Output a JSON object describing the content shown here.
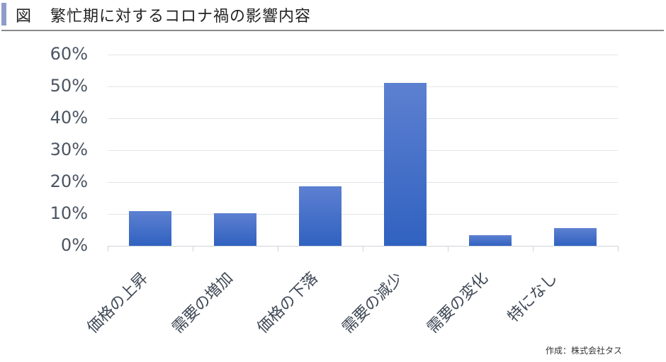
{
  "header": {
    "figure_label": "図",
    "title": "繁忙期に対するコロナ禍の影響内容",
    "accent_color": "#8E9BCB"
  },
  "chart_data": {
    "type": "bar",
    "title": "繁忙期に対するコロナ禍の影響内容",
    "categories": [
      "価格の上昇",
      "需要の増加",
      "価格の下落",
      "需要の減少",
      "需要の変化",
      "特になし"
    ],
    "values": [
      10.9,
      10.2,
      18.7,
      51.1,
      3.3,
      5.6
    ],
    "value_unit": "%",
    "xlabel": "",
    "ylabel": "",
    "ylim": [
      0,
      60
    ],
    "yticks": [
      "0%",
      "10%",
      "20%",
      "30%",
      "40%",
      "50%",
      "60%"
    ],
    "grid": true,
    "legend": null,
    "bar_color": "#4472C4"
  },
  "footer": {
    "source": "作成：株式会社タス"
  }
}
